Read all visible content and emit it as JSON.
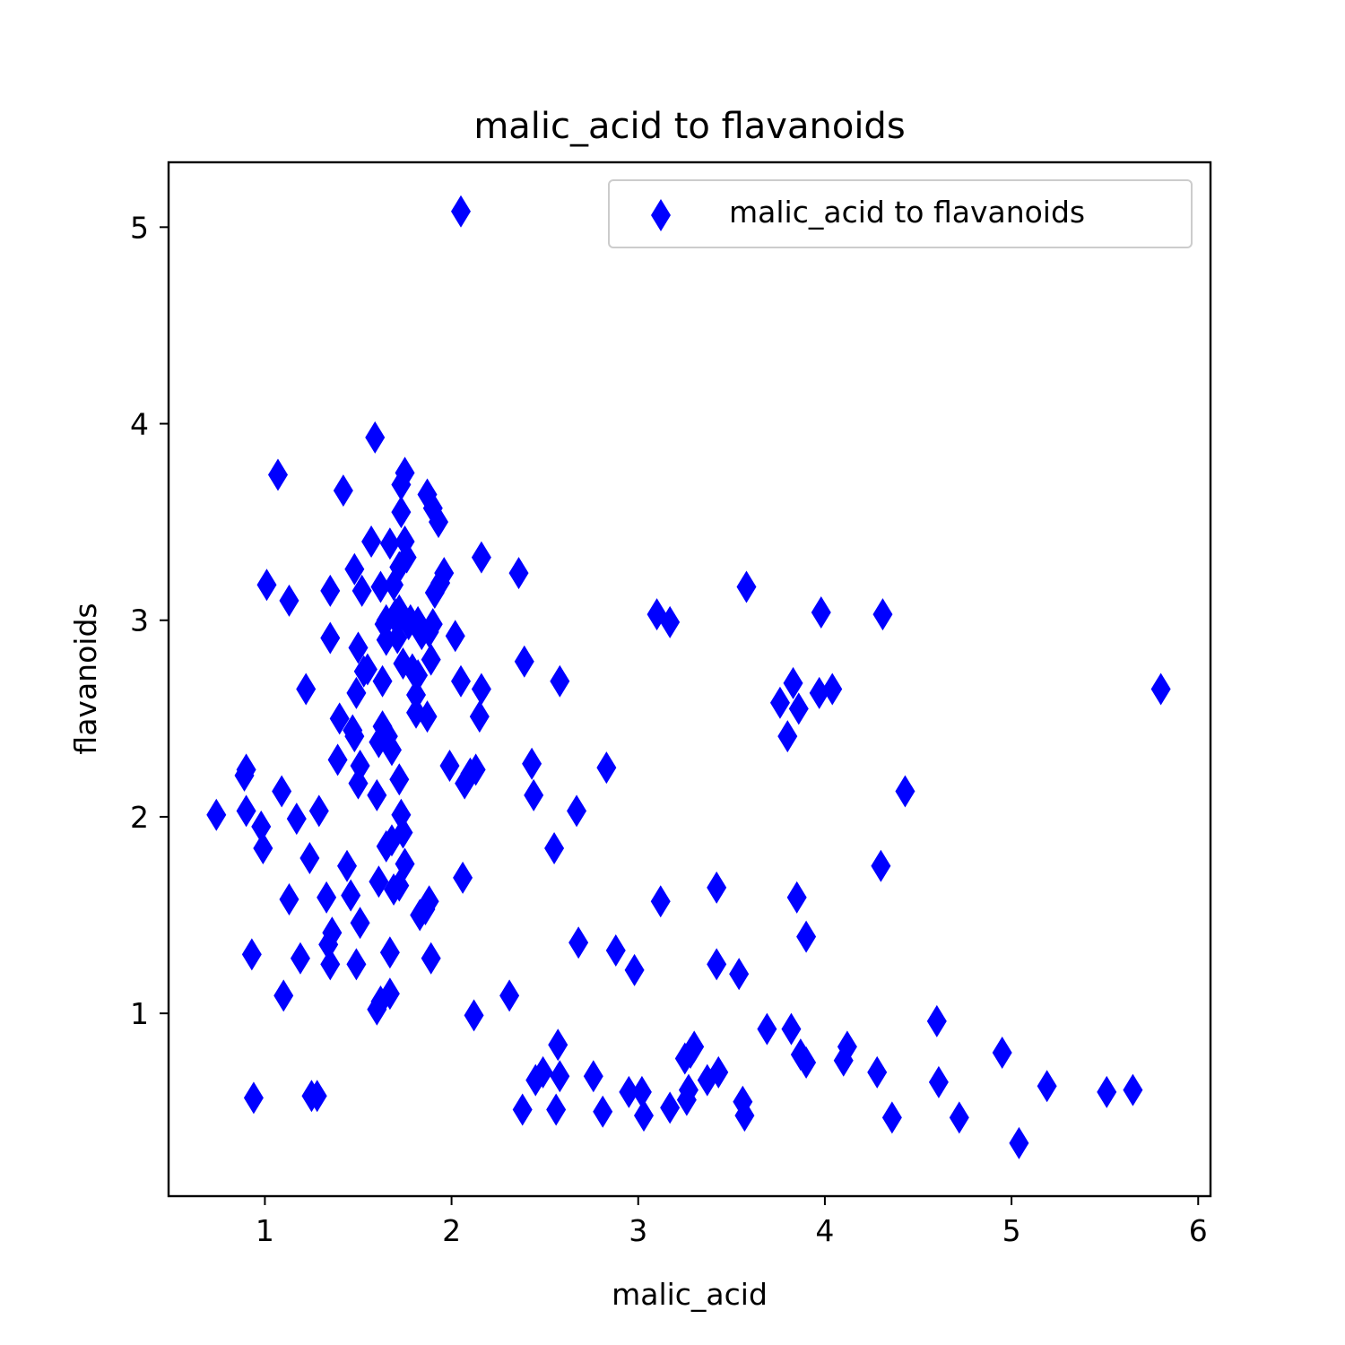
{
  "chart_data": {
    "type": "scatter",
    "title": "malic_acid to flavanoids",
    "xlabel": "malic_acid",
    "ylabel": "flavanoids",
    "xlim": [
      0.484,
      6.066
    ],
    "ylim": [
      0.07,
      5.33
    ],
    "xticks": [
      1,
      2,
      3,
      4,
      5,
      6
    ],
    "yticks": [
      1,
      2,
      3,
      4,
      5
    ],
    "grid": false,
    "legend_position": "top-right",
    "marker": "thin-diamond",
    "color": "#0000ff",
    "series": [
      {
        "name": "malic_acid to flavanoids",
        "points": [
          [
            0.74,
            2.01
          ],
          [
            0.89,
            2.21
          ],
          [
            0.9,
            2.24
          ],
          [
            0.9,
            2.03
          ],
          [
            0.93,
            1.3
          ],
          [
            0.94,
            0.57
          ],
          [
            0.98,
            1.95
          ],
          [
            0.99,
            1.84
          ],
          [
            1.01,
            3.18
          ],
          [
            1.07,
            3.74
          ],
          [
            1.09,
            2.13
          ],
          [
            1.1,
            1.09
          ],
          [
            1.13,
            3.1
          ],
          [
            1.13,
            1.58
          ],
          [
            1.17,
            1.99
          ],
          [
            1.19,
            1.28
          ],
          [
            1.22,
            2.65
          ],
          [
            1.24,
            1.79
          ],
          [
            1.25,
            0.58
          ],
          [
            1.28,
            0.58
          ],
          [
            1.29,
            2.03
          ],
          [
            1.33,
            1.59
          ],
          [
            1.34,
            1.35
          ],
          [
            1.35,
            1.25
          ],
          [
            1.35,
            2.91
          ],
          [
            1.35,
            3.15
          ],
          [
            1.36,
            1.41
          ],
          [
            1.39,
            2.29
          ],
          [
            1.4,
            2.5
          ],
          [
            1.42,
            3.66
          ],
          [
            1.44,
            1.75
          ],
          [
            1.46,
            1.6
          ],
          [
            1.47,
            2.44
          ],
          [
            1.48,
            2.41
          ],
          [
            1.48,
            3.26
          ],
          [
            1.49,
            2.63
          ],
          [
            1.49,
            1.25
          ],
          [
            1.5,
            2.86
          ],
          [
            1.5,
            2.17
          ],
          [
            1.51,
            2.26
          ],
          [
            1.51,
            1.46
          ],
          [
            1.52,
            3.15
          ],
          [
            1.53,
            2.74
          ],
          [
            1.55,
            2.75
          ],
          [
            1.57,
            3.4
          ],
          [
            1.59,
            3.93
          ],
          [
            1.6,
            1.02
          ],
          [
            1.6,
            2.11
          ],
          [
            1.61,
            2.38
          ],
          [
            1.61,
            1.67
          ],
          [
            1.62,
            1.06
          ],
          [
            1.62,
            3.17
          ],
          [
            1.63,
            2.46
          ],
          [
            1.63,
            2.69
          ],
          [
            1.64,
            2.98
          ],
          [
            1.65,
            1.85
          ],
          [
            1.65,
            3.0
          ],
          [
            1.65,
            2.9
          ],
          [
            1.66,
            2.41
          ],
          [
            1.67,
            1.1
          ],
          [
            1.67,
            1.31
          ],
          [
            1.67,
            3.39
          ],
          [
            1.68,
            2.34
          ],
          [
            1.68,
            1.88
          ],
          [
            1.69,
            1.63
          ],
          [
            1.69,
            3.18
          ],
          [
            1.7,
            3.03
          ],
          [
            1.71,
            2.91
          ],
          [
            1.71,
            2.99
          ],
          [
            1.72,
            2.19
          ],
          [
            1.72,
            1.65
          ],
          [
            1.72,
            3.27
          ],
          [
            1.72,
            3.05
          ],
          [
            1.73,
            2.01
          ],
          [
            1.73,
            3.55
          ],
          [
            1.73,
            3.69
          ],
          [
            1.74,
            2.78
          ],
          [
            1.74,
            1.92
          ],
          [
            1.75,
            3.75
          ],
          [
            1.75,
            3.4
          ],
          [
            1.75,
            1.76
          ],
          [
            1.76,
            3.32
          ],
          [
            1.77,
            2.98
          ],
          [
            1.78,
            3.0
          ],
          [
            1.79,
            2.75
          ],
          [
            1.81,
            2.53
          ],
          [
            1.81,
            2.62
          ],
          [
            1.82,
            2.99
          ],
          [
            1.82,
            2.72
          ],
          [
            1.83,
            1.5
          ],
          [
            1.84,
            2.93
          ],
          [
            1.86,
            1.53
          ],
          [
            1.87,
            2.51
          ],
          [
            1.87,
            3.64
          ],
          [
            1.88,
            1.57
          ],
          [
            1.88,
            2.94
          ],
          [
            1.89,
            2.8
          ],
          [
            1.89,
            1.28
          ],
          [
            1.9,
            3.57
          ],
          [
            1.9,
            2.98
          ],
          [
            1.91,
            3.14
          ],
          [
            1.93,
            3.5
          ],
          [
            1.94,
            3.19
          ],
          [
            1.96,
            3.24
          ],
          [
            1.99,
            2.26
          ],
          [
            2.02,
            2.92
          ],
          [
            2.05,
            5.08
          ],
          [
            2.05,
            2.69
          ],
          [
            2.06,
            1.69
          ],
          [
            2.07,
            2.17
          ],
          [
            2.1,
            2.22
          ],
          [
            2.12,
            0.99
          ],
          [
            2.13,
            2.24
          ],
          [
            2.15,
            2.51
          ],
          [
            2.16,
            2.65
          ],
          [
            2.16,
            3.32
          ],
          [
            2.31,
            1.09
          ],
          [
            2.36,
            3.24
          ],
          [
            2.38,
            0.51
          ],
          [
            2.39,
            2.79
          ],
          [
            2.43,
            2.27
          ],
          [
            2.44,
            2.11
          ],
          [
            2.45,
            0.66
          ],
          [
            2.49,
            0.7
          ],
          [
            2.55,
            1.84
          ],
          [
            2.56,
            0.51
          ],
          [
            2.57,
            0.84
          ],
          [
            2.58,
            2.69
          ],
          [
            2.58,
            0.68
          ],
          [
            2.67,
            2.03
          ],
          [
            2.68,
            1.36
          ],
          [
            2.76,
            0.68
          ],
          [
            2.81,
            0.5
          ],
          [
            2.83,
            2.25
          ],
          [
            2.88,
            1.32
          ],
          [
            2.95,
            0.6
          ],
          [
            2.98,
            1.22
          ],
          [
            3.02,
            0.6
          ],
          [
            3.03,
            0.48
          ],
          [
            3.1,
            3.03
          ],
          [
            3.12,
            1.57
          ],
          [
            3.17,
            2.99
          ],
          [
            3.17,
            0.52
          ],
          [
            3.25,
            0.77
          ],
          [
            3.26,
            0.56
          ],
          [
            3.27,
            0.61
          ],
          [
            3.28,
            0.8
          ],
          [
            3.3,
            0.83
          ],
          [
            3.37,
            0.66
          ],
          [
            3.42,
            1.25
          ],
          [
            3.42,
            1.64
          ],
          [
            3.43,
            0.7
          ],
          [
            3.54,
            1.2
          ],
          [
            3.56,
            0.55
          ],
          [
            3.57,
            0.48
          ],
          [
            3.58,
            3.17
          ],
          [
            3.69,
            0.92
          ],
          [
            3.76,
            2.58
          ],
          [
            3.8,
            2.41
          ],
          [
            3.82,
            0.92
          ],
          [
            3.83,
            2.68
          ],
          [
            3.85,
            1.59
          ],
          [
            3.86,
            2.55
          ],
          [
            3.87,
            0.79
          ],
          [
            3.9,
            0.75
          ],
          [
            3.9,
            1.39
          ],
          [
            3.97,
            2.63
          ],
          [
            3.98,
            3.04
          ],
          [
            4.04,
            2.65
          ],
          [
            4.1,
            0.76
          ],
          [
            4.12,
            0.83
          ],
          [
            4.28,
            0.7
          ],
          [
            4.3,
            1.75
          ],
          [
            4.31,
            3.03
          ],
          [
            4.36,
            0.47
          ],
          [
            4.43,
            2.13
          ],
          [
            4.6,
            0.96
          ],
          [
            4.61,
            0.65
          ],
          [
            4.72,
            0.47
          ],
          [
            4.95,
            0.8
          ],
          [
            5.04,
            0.34
          ],
          [
            5.19,
            0.63
          ],
          [
            5.51,
            0.6
          ],
          [
            5.65,
            0.61
          ],
          [
            5.8,
            2.65
          ]
        ]
      }
    ]
  }
}
